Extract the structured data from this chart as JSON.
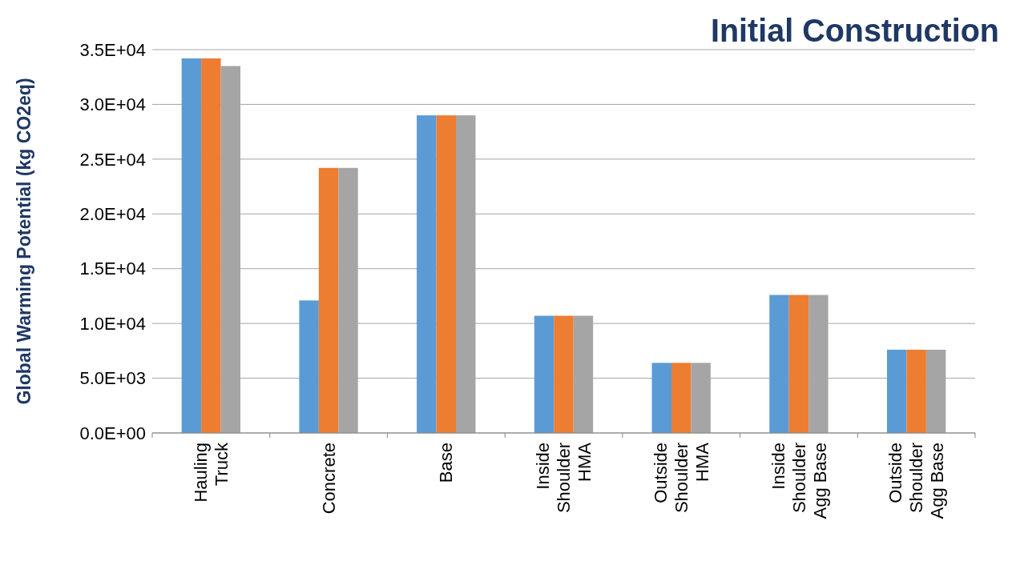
{
  "chart_data": {
    "type": "bar",
    "title": "Initial Construction",
    "ylabel": "Global Warming Potential (kg CO2eq)",
    "categories": [
      "Hauling Truck",
      "Concrete",
      "Base",
      "Inside Shoulder HMA",
      "Outside Shoulder HMA",
      "Inside Shoulder Agg Base",
      "Outside Shoulder Agg Base"
    ],
    "series": [
      {
        "color": "#5b9bd5",
        "values": [
          34200,
          12100,
          29000,
          10700,
          6400,
          12600,
          7600
        ]
      },
      {
        "color": "#ed7d31",
        "values": [
          34200,
          24200,
          29000,
          10700,
          6400,
          12600,
          7600
        ]
      },
      {
        "color": "#a5a5a5",
        "values": [
          33500,
          24200,
          29000,
          10700,
          6400,
          12600,
          7600
        ]
      }
    ],
    "ylim": [
      0,
      35000
    ],
    "yticks": [
      {
        "value": 0,
        "label": "0.0E+00"
      },
      {
        "value": 5000,
        "label": "5.0E+03"
      },
      {
        "value": 10000,
        "label": "1.0E+04"
      },
      {
        "value": 15000,
        "label": "1.5E+04"
      },
      {
        "value": 20000,
        "label": "2.0E+04"
      },
      {
        "value": 25000,
        "label": "2.5E+04"
      },
      {
        "value": 30000,
        "label": "3.0E+04"
      },
      {
        "value": 35000,
        "label": "3.5E+04"
      }
    ],
    "grid": "y"
  }
}
